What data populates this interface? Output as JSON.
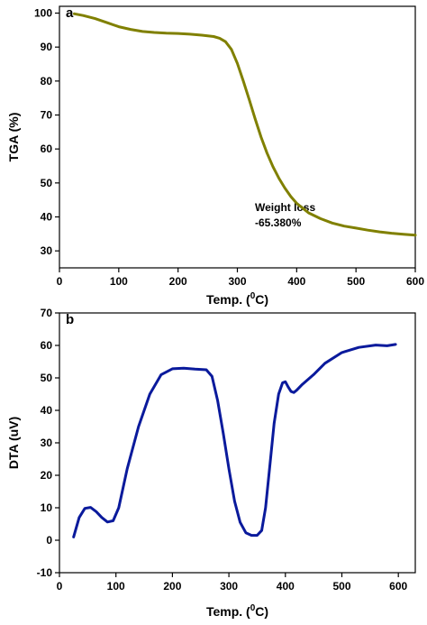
{
  "chart_data": [
    {
      "type": "line",
      "panel_label": "a",
      "xlabel": "Temp. (0C)",
      "xlabel_parts": {
        "pre": "Temp. (",
        "sup": "0",
        "post": "C)"
      },
      "ylabel": "TGA (%)",
      "xlim": [
        0,
        600
      ],
      "ylim": [
        25,
        102
      ],
      "xticks": [
        0,
        100,
        200,
        300,
        400,
        500,
        600
      ],
      "yticks": [
        30,
        40,
        50,
        60,
        70,
        80,
        90,
        100
      ],
      "grid": false,
      "color": "#808000",
      "annotation": [
        "Weight loss",
        "-65.380%"
      ],
      "series": [
        {
          "x": [
            25,
            40,
            60,
            80,
            100,
            120,
            140,
            160,
            180,
            200,
            220,
            240,
            260,
            270,
            280,
            290,
            300,
            310,
            320,
            330,
            340,
            350,
            360,
            370,
            380,
            390,
            400,
            420,
            440,
            460,
            480,
            500,
            520,
            540,
            560,
            580,
            600
          ],
          "y": [
            99.8,
            99.3,
            98.4,
            97.2,
            96.0,
            95.2,
            94.6,
            94.3,
            94.1,
            94.0,
            93.8,
            93.5,
            93.1,
            92.6,
            91.6,
            89.3,
            85.2,
            80.0,
            74.5,
            68.8,
            63.5,
            58.8,
            54.8,
            51.4,
            48.5,
            46.0,
            44.0,
            41.2,
            39.5,
            38.2,
            37.3,
            36.7,
            36.1,
            35.6,
            35.2,
            34.9,
            34.6
          ]
        }
      ]
    },
    {
      "type": "line",
      "panel_label": "b",
      "xlabel": "Temp. (0C)",
      "xlabel_parts": {
        "pre": "Temp. (",
        "sup": "0",
        "post": "C)"
      },
      "ylabel": "DTA (uV)",
      "xlim": [
        0,
        630
      ],
      "ylim": [
        -10,
        70
      ],
      "xticks": [
        0,
        100,
        200,
        300,
        400,
        500,
        600
      ],
      "yticks": [
        -10,
        0,
        10,
        20,
        30,
        40,
        50,
        60,
        70
      ],
      "grid": false,
      "color": "#0a1a9c",
      "series": [
        {
          "x": [
            25,
            35,
            45,
            55,
            65,
            75,
            85,
            95,
            105,
            120,
            140,
            160,
            180,
            200,
            220,
            240,
            260,
            270,
            280,
            290,
            300,
            310,
            320,
            330,
            340,
            350,
            358,
            365,
            372,
            380,
            388,
            395,
            400,
            405,
            410,
            415,
            420,
            430,
            450,
            470,
            500,
            530,
            560,
            580,
            595
          ],
          "y": [
            1,
            7,
            9.8,
            10.1,
            8.8,
            7,
            5.6,
            6,
            10,
            22,
            35,
            45,
            51,
            52.8,
            53,
            52.7,
            52.5,
            50.5,
            43,
            33,
            22,
            12,
            5.5,
            2.3,
            1.5,
            1.5,
            3,
            10,
            22,
            36,
            45,
            48.5,
            48.8,
            47.2,
            45.8,
            45.5,
            46.2,
            48,
            51,
            54.5,
            57.8,
            59.4,
            60.1,
            59.9,
            60.3
          ]
        }
      ]
    }
  ]
}
